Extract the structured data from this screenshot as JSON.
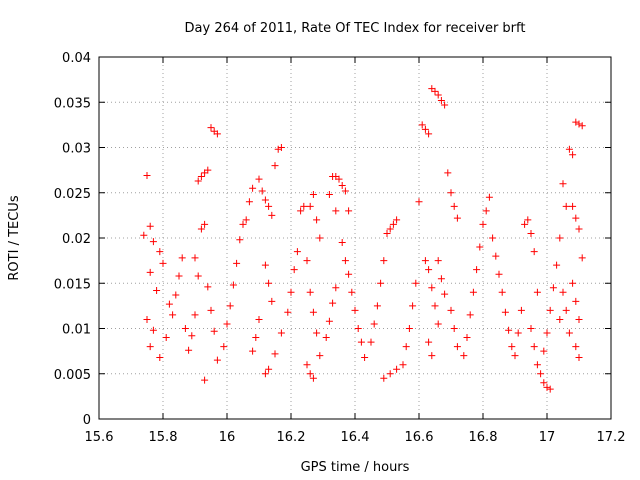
{
  "chart_data": {
    "type": "scatter",
    "title": "Day 264 of 2011, Rate Of TEC Index for receiver brft",
    "xlabel": "GPS time / hours",
    "ylabel": "ROTI / TECUs",
    "xlim": [
      15.6,
      17.2
    ],
    "ylim": [
      0,
      0.04
    ],
    "x_ticks": [
      "15.6",
      "15.8",
      "16",
      "16.2",
      "16.4",
      "16.6",
      "16.8",
      "17",
      "17.2"
    ],
    "y_ticks": [
      "0",
      "0.005",
      "0.01",
      "0.015",
      "0.02",
      "0.025",
      "0.03",
      "0.035",
      "0.04"
    ],
    "grid": true,
    "marker": "+",
    "marker_color": "#ff0000",
    "series": [
      {
        "name": "",
        "points": [
          [
            15.75,
            0.0269
          ],
          [
            15.76,
            0.0213
          ],
          [
            15.74,
            0.0203
          ],
          [
            15.77,
            0.0196
          ],
          [
            15.79,
            0.0185
          ],
          [
            15.8,
            0.0172
          ],
          [
            15.76,
            0.0162
          ],
          [
            15.78,
            0.0142
          ],
          [
            15.75,
            0.011
          ],
          [
            15.77,
            0.0098
          ],
          [
            15.76,
            0.008
          ],
          [
            15.79,
            0.0068
          ],
          [
            15.81,
            0.009
          ],
          [
            15.83,
            0.0115
          ],
          [
            15.84,
            0.0137
          ],
          [
            15.85,
            0.0158
          ],
          [
            15.86,
            0.0178
          ],
          [
            15.82,
            0.0127
          ],
          [
            15.87,
            0.01
          ],
          [
            15.88,
            0.0076
          ],
          [
            15.89,
            0.0092
          ],
          [
            15.9,
            0.0115
          ],
          [
            15.91,
            0.0263
          ],
          [
            15.92,
            0.0268
          ],
          [
            15.93,
            0.0272
          ],
          [
            15.94,
            0.0275
          ],
          [
            15.95,
            0.0322
          ],
          [
            15.96,
            0.0318
          ],
          [
            15.97,
            0.0315
          ],
          [
            15.92,
            0.021
          ],
          [
            15.93,
            0.0215
          ],
          [
            15.9,
            0.0178
          ],
          [
            15.91,
            0.0158
          ],
          [
            15.94,
            0.0146
          ],
          [
            15.95,
            0.012
          ],
          [
            15.96,
            0.0097
          ],
          [
            15.93,
            0.0043
          ],
          [
            15.97,
            0.0065
          ],
          [
            15.99,
            0.008
          ],
          [
            16.0,
            0.0105
          ],
          [
            16.01,
            0.0125
          ],
          [
            16.02,
            0.0148
          ],
          [
            16.03,
            0.0172
          ],
          [
            16.04,
            0.0198
          ],
          [
            16.05,
            0.0215
          ],
          [
            16.06,
            0.022
          ],
          [
            16.07,
            0.024
          ],
          [
            16.08,
            0.0255
          ],
          [
            16.1,
            0.0265
          ],
          [
            16.11,
            0.0252
          ],
          [
            16.12,
            0.0242
          ],
          [
            16.13,
            0.0235
          ],
          [
            16.14,
            0.0225
          ],
          [
            16.15,
            0.028
          ],
          [
            16.16,
            0.0298
          ],
          [
            16.17,
            0.03
          ],
          [
            16.12,
            0.017
          ],
          [
            16.13,
            0.015
          ],
          [
            16.14,
            0.013
          ],
          [
            16.1,
            0.011
          ],
          [
            16.09,
            0.009
          ],
          [
            16.08,
            0.0075
          ],
          [
            16.12,
            0.005
          ],
          [
            16.13,
            0.0055
          ],
          [
            16.15,
            0.0072
          ],
          [
            16.17,
            0.0095
          ],
          [
            16.19,
            0.0118
          ],
          [
            16.2,
            0.014
          ],
          [
            16.21,
            0.0165
          ],
          [
            16.22,
            0.0185
          ],
          [
            16.23,
            0.023
          ],
          [
            16.24,
            0.0235
          ],
          [
            16.26,
            0.0235
          ],
          [
            16.27,
            0.0248
          ],
          [
            16.28,
            0.022
          ],
          [
            16.29,
            0.02
          ],
          [
            16.25,
            0.0175
          ],
          [
            16.26,
            0.014
          ],
          [
            16.27,
            0.0118
          ],
          [
            16.28,
            0.0095
          ],
          [
            16.25,
            0.006
          ],
          [
            16.26,
            0.005
          ],
          [
            16.27,
            0.0045
          ],
          [
            16.29,
            0.007
          ],
          [
            16.31,
            0.009
          ],
          [
            16.32,
            0.0108
          ],
          [
            16.33,
            0.0128
          ],
          [
            16.34,
            0.0145
          ],
          [
            16.32,
            0.0248
          ],
          [
            16.33,
            0.0268
          ],
          [
            16.34,
            0.0268
          ],
          [
            16.35,
            0.0265
          ],
          [
            16.36,
            0.0258
          ],
          [
            16.37,
            0.0252
          ],
          [
            16.38,
            0.023
          ],
          [
            16.34,
            0.023
          ],
          [
            16.36,
            0.0195
          ],
          [
            16.37,
            0.0175
          ],
          [
            16.38,
            0.016
          ],
          [
            16.39,
            0.014
          ],
          [
            16.4,
            0.012
          ],
          [
            16.41,
            0.01
          ],
          [
            16.42,
            0.0085
          ],
          [
            16.43,
            0.0068
          ],
          [
            16.45,
            0.0085
          ],
          [
            16.46,
            0.0105
          ],
          [
            16.47,
            0.0125
          ],
          [
            16.48,
            0.015
          ],
          [
            16.49,
            0.0175
          ],
          [
            16.5,
            0.0205
          ],
          [
            16.51,
            0.021
          ],
          [
            16.52,
            0.0215
          ],
          [
            16.53,
            0.022
          ],
          [
            16.49,
            0.0045
          ],
          [
            16.51,
            0.005
          ],
          [
            16.53,
            0.0055
          ],
          [
            16.55,
            0.006
          ],
          [
            16.56,
            0.008
          ],
          [
            16.57,
            0.01
          ],
          [
            16.58,
            0.0125
          ],
          [
            16.59,
            0.015
          ],
          [
            16.6,
            0.024
          ],
          [
            16.61,
            0.0325
          ],
          [
            16.62,
            0.032
          ],
          [
            16.63,
            0.0315
          ],
          [
            16.64,
            0.0365
          ],
          [
            16.65,
            0.0362
          ],
          [
            16.66,
            0.0358
          ],
          [
            16.67,
            0.0352
          ],
          [
            16.68,
            0.0347
          ],
          [
            16.62,
            0.0175
          ],
          [
            16.63,
            0.0165
          ],
          [
            16.64,
            0.0145
          ],
          [
            16.65,
            0.0125
          ],
          [
            16.66,
            0.0105
          ],
          [
            16.63,
            0.0085
          ],
          [
            16.64,
            0.007
          ],
          [
            16.66,
            0.0175
          ],
          [
            16.67,
            0.0155
          ],
          [
            16.68,
            0.0138
          ],
          [
            16.69,
            0.0272
          ],
          [
            16.7,
            0.025
          ],
          [
            16.71,
            0.0235
          ],
          [
            16.72,
            0.0222
          ],
          [
            16.7,
            0.012
          ],
          [
            16.71,
            0.01
          ],
          [
            16.72,
            0.008
          ],
          [
            16.74,
            0.007
          ],
          [
            16.75,
            0.009
          ],
          [
            16.76,
            0.0115
          ],
          [
            16.77,
            0.014
          ],
          [
            16.78,
            0.0165
          ],
          [
            16.79,
            0.019
          ],
          [
            16.8,
            0.0215
          ],
          [
            16.81,
            0.023
          ],
          [
            16.82,
            0.0245
          ],
          [
            16.83,
            0.02
          ],
          [
            16.84,
            0.018
          ],
          [
            16.85,
            0.016
          ],
          [
            16.86,
            0.014
          ],
          [
            16.87,
            0.0118
          ],
          [
            16.88,
            0.0098
          ],
          [
            16.89,
            0.008
          ],
          [
            16.9,
            0.007
          ],
          [
            16.91,
            0.0095
          ],
          [
            16.92,
            0.012
          ],
          [
            16.93,
            0.0215
          ],
          [
            16.94,
            0.022
          ],
          [
            16.95,
            0.0205
          ],
          [
            16.96,
            0.0185
          ],
          [
            16.97,
            0.014
          ],
          [
            16.95,
            0.01
          ],
          [
            16.96,
            0.008
          ],
          [
            16.97,
            0.006
          ],
          [
            16.98,
            0.005
          ],
          [
            16.99,
            0.004
          ],
          [
            17.0,
            0.0035
          ],
          [
            17.01,
            0.0033
          ],
          [
            16.99,
            0.0075
          ],
          [
            17.0,
            0.0095
          ],
          [
            17.01,
            0.012
          ],
          [
            17.02,
            0.0145
          ],
          [
            17.03,
            0.017
          ],
          [
            17.04,
            0.02
          ],
          [
            17.05,
            0.026
          ],
          [
            17.06,
            0.0235
          ],
          [
            17.07,
            0.0298
          ],
          [
            17.08,
            0.0292
          ],
          [
            17.09,
            0.0328
          ],
          [
            17.1,
            0.0326
          ],
          [
            17.11,
            0.0324
          ],
          [
            17.08,
            0.0235
          ],
          [
            17.09,
            0.0222
          ],
          [
            17.1,
            0.021
          ],
          [
            17.11,
            0.0178
          ],
          [
            17.08,
            0.015
          ],
          [
            17.09,
            0.013
          ],
          [
            17.1,
            0.011
          ],
          [
            17.07,
            0.0095
          ],
          [
            17.09,
            0.008
          ],
          [
            17.1,
            0.0068
          ],
          [
            17.06,
            0.012
          ],
          [
            17.05,
            0.014
          ],
          [
            17.04,
            0.011
          ]
        ]
      }
    ]
  }
}
